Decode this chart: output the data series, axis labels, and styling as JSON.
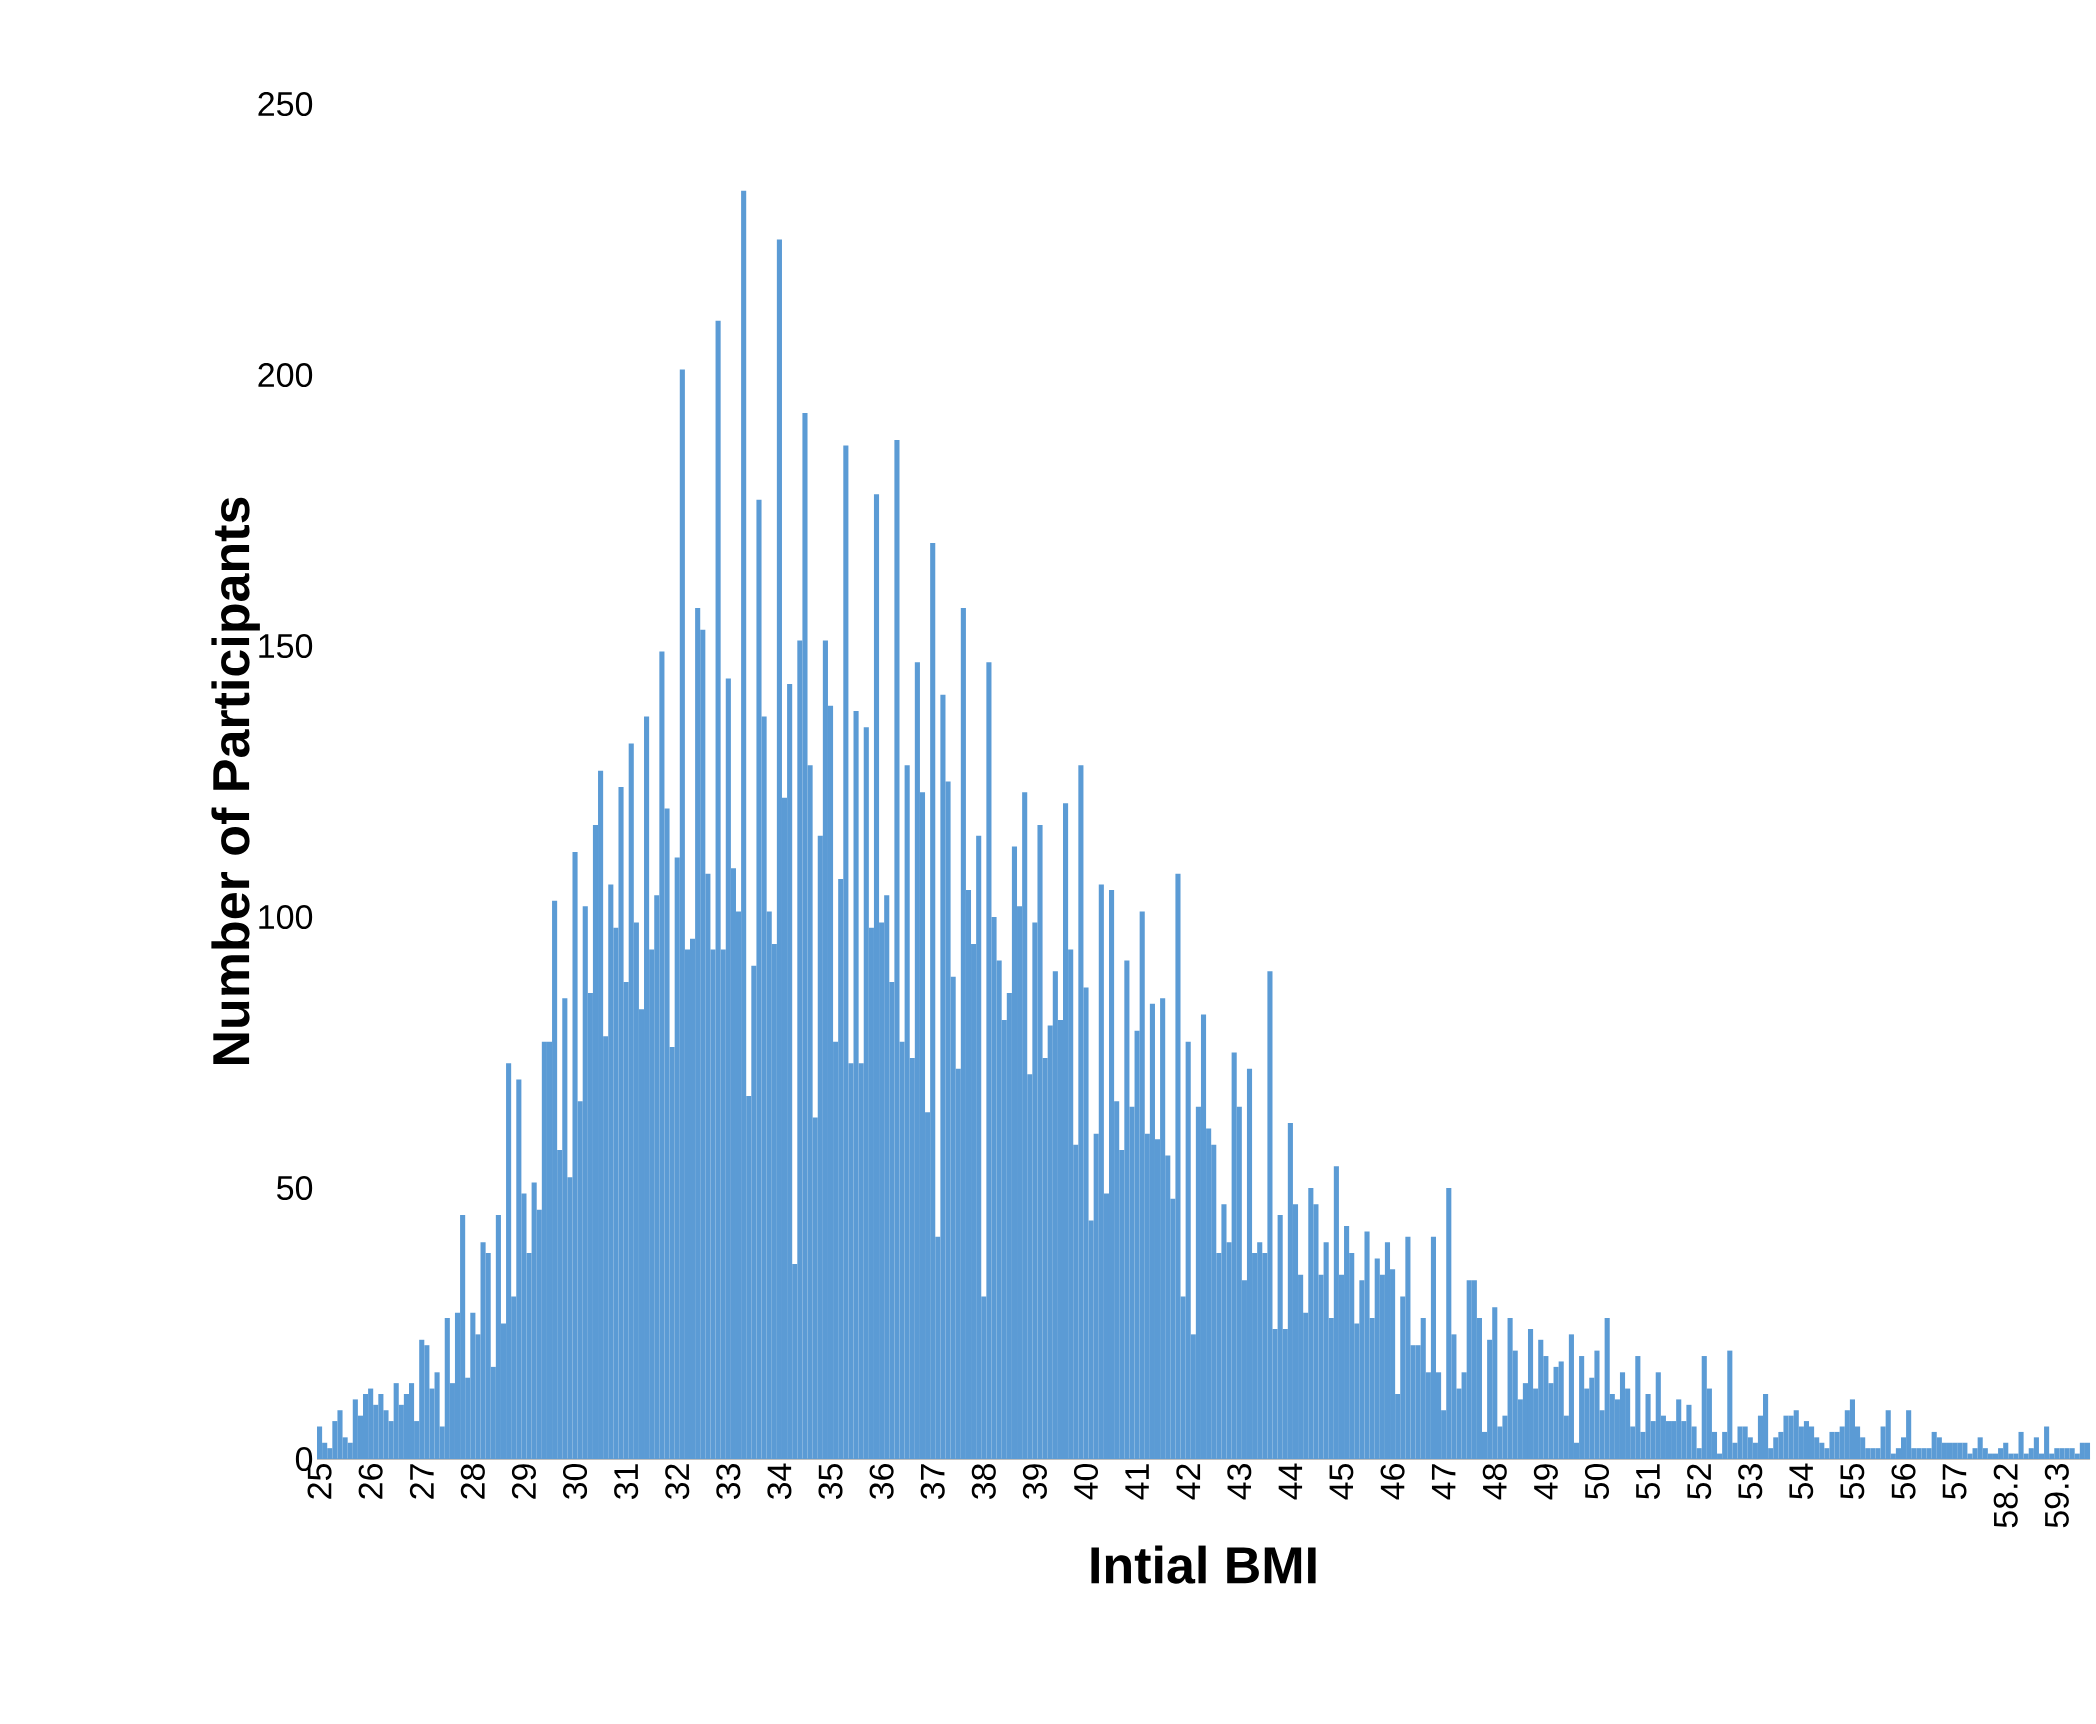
{
  "chart_data": {
    "type": "bar",
    "xlabel": "Intial BMI",
    "ylabel": "Number of Participants",
    "color": "#5b9bd5",
    "ylim": [
      0,
      250
    ],
    "yticks": [
      0,
      50,
      100,
      150,
      200,
      250
    ],
    "categories": [
      "25",
      null,
      null,
      null,
      null,
      null,
      null,
      null,
      null,
      null,
      "26",
      null,
      null,
      null,
      null,
      null,
      null,
      null,
      null,
      null,
      "27",
      null,
      null,
      null,
      null,
      null,
      null,
      null,
      null,
      null,
      "28",
      null,
      null,
      null,
      null,
      null,
      null,
      null,
      null,
      null,
      "29",
      null,
      null,
      null,
      null,
      null,
      null,
      null,
      null,
      null,
      "30",
      null,
      null,
      null,
      null,
      null,
      null,
      null,
      null,
      null,
      "31",
      null,
      null,
      null,
      null,
      null,
      null,
      null,
      null,
      null,
      "32",
      null,
      null,
      null,
      null,
      null,
      null,
      null,
      null,
      null,
      "33",
      null,
      null,
      null,
      null,
      null,
      null,
      null,
      null,
      null,
      "34",
      null,
      null,
      null,
      null,
      null,
      null,
      null,
      null,
      null,
      "35",
      null,
      null,
      null,
      null,
      null,
      null,
      null,
      null,
      null,
      "36",
      null,
      null,
      null,
      null,
      null,
      null,
      null,
      null,
      null,
      "37",
      null,
      null,
      null,
      null,
      null,
      null,
      null,
      null,
      null,
      "38",
      null,
      null,
      null,
      null,
      null,
      null,
      null,
      null,
      null,
      "39",
      null,
      null,
      null,
      null,
      null,
      null,
      null,
      null,
      null,
      "40",
      null,
      null,
      null,
      null,
      null,
      null,
      null,
      null,
      null,
      "41",
      null,
      null,
      null,
      null,
      null,
      null,
      null,
      null,
      null,
      "42",
      null,
      null,
      null,
      null,
      null,
      null,
      null,
      null,
      null,
      "43",
      null,
      null,
      null,
      null,
      null,
      null,
      null,
      null,
      null,
      "44",
      null,
      null,
      null,
      null,
      null,
      null,
      null,
      null,
      null,
      "45",
      null,
      null,
      null,
      null,
      null,
      null,
      null,
      null,
      null,
      "46",
      null,
      null,
      null,
      null,
      null,
      null,
      null,
      null,
      null,
      "47",
      null,
      null,
      null,
      null,
      null,
      null,
      null,
      null,
      null,
      "48",
      null,
      null,
      null,
      null,
      null,
      null,
      null,
      null,
      null,
      "49",
      null,
      null,
      null,
      null,
      null,
      null,
      null,
      null,
      null,
      "50",
      null,
      null,
      null,
      null,
      null,
      null,
      null,
      null,
      null,
      "51",
      null,
      null,
      null,
      null,
      null,
      null,
      null,
      null,
      null,
      "52",
      null,
      null,
      null,
      null,
      null,
      null,
      null,
      null,
      null,
      "53",
      null,
      null,
      null,
      null,
      null,
      null,
      null,
      null,
      null,
      "54",
      null,
      null,
      null,
      null,
      null,
      null,
      null,
      null,
      null,
      "55",
      null,
      null,
      null,
      null,
      null,
      null,
      null,
      null,
      null,
      "56",
      null,
      null,
      null,
      null,
      null,
      null,
      null,
      null,
      null,
      "57",
      null,
      null,
      null,
      null,
      null,
      null,
      null,
      null,
      null,
      "58.2",
      null,
      null,
      null,
      null,
      null,
      null,
      null,
      null,
      null,
      "59.3",
      null,
      null,
      null,
      null,
      null,
      null
    ],
    "values": [
      6,
      3,
      2,
      7,
      9,
      4,
      3,
      11,
      8,
      12,
      13,
      10,
      12,
      9,
      7,
      14,
      10,
      12,
      14,
      7,
      22,
      21,
      13,
      16,
      6,
      26,
      14,
      27,
      45,
      15,
      27,
      23,
      40,
      38,
      17,
      45,
      25,
      73,
      30,
      70,
      49,
      38,
      51,
      46,
      77,
      77,
      103,
      57,
      85,
      52,
      112,
      66,
      102,
      86,
      117,
      127,
      78,
      106,
      98,
      124,
      88,
      132,
      99,
      83,
      137,
      94,
      104,
      149,
      120,
      76,
      111,
      201,
      94,
      96,
      157,
      153,
      108,
      94,
      210,
      94,
      144,
      109,
      101,
      234,
      67,
      91,
      177,
      137,
      101,
      95,
      225,
      122,
      143,
      36,
      151,
      193,
      128,
      63,
      115,
      151,
      139,
      77,
      107,
      187,
      73,
      138,
      73,
      135,
      98,
      178,
      99,
      104,
      88,
      188,
      77,
      128,
      74,
      147,
      123,
      64,
      169,
      41,
      141,
      125,
      89,
      72,
      157,
      105,
      95,
      115,
      30,
      147,
      100,
      92,
      81,
      86,
      113,
      102,
      123,
      71,
      99,
      117,
      74,
      80,
      90,
      81,
      121,
      94,
      58,
      128,
      87,
      44,
      60,
      106,
      49,
      105,
      66,
      57,
      92,
      65,
      79,
      101,
      60,
      84,
      59,
      85,
      56,
      48,
      108,
      30,
      77,
      23,
      65,
      82,
      61,
      58,
      38,
      47,
      40,
      75,
      65,
      33,
      72,
      38,
      40,
      38,
      90,
      24,
      45,
      24,
      62,
      47,
      34,
      27,
      50,
      47,
      34,
      40,
      26,
      54,
      34,
      43,
      38,
      25,
      33,
      42,
      26,
      37,
      34,
      40,
      35,
      12,
      30,
      41,
      21,
      21,
      26,
      16,
      41,
      16,
      9,
      50,
      23,
      13,
      16,
      33,
      33,
      26,
      5,
      22,
      28,
      6,
      8,
      26,
      20,
      11,
      14,
      24,
      13,
      22,
      19,
      14,
      17,
      18,
      8,
      23,
      3,
      19,
      13,
      15,
      20,
      9,
      26,
      12,
      11,
      16,
      13,
      6,
      19,
      5,
      12,
      7,
      16,
      8,
      7,
      7,
      11,
      7,
      10,
      6,
      2,
      19,
      13,
      5,
      1,
      5,
      20,
      3,
      6,
      6,
      4,
      3,
      8,
      12,
      2,
      4,
      5,
      8,
      8,
      9,
      6,
      7,
      6,
      4,
      3,
      2,
      5,
      5,
      6,
      9,
      11,
      6,
      4,
      2,
      2,
      2,
      6,
      9,
      1,
      2,
      4,
      9,
      2,
      2,
      2,
      2,
      5,
      4,
      3,
      3,
      3,
      3,
      3,
      1,
      2,
      4,
      2,
      1,
      1,
      2,
      3,
      1,
      1,
      5,
      1,
      2,
      4,
      1,
      6,
      1,
      2,
      2,
      2,
      2,
      1,
      3,
      3
    ]
  }
}
